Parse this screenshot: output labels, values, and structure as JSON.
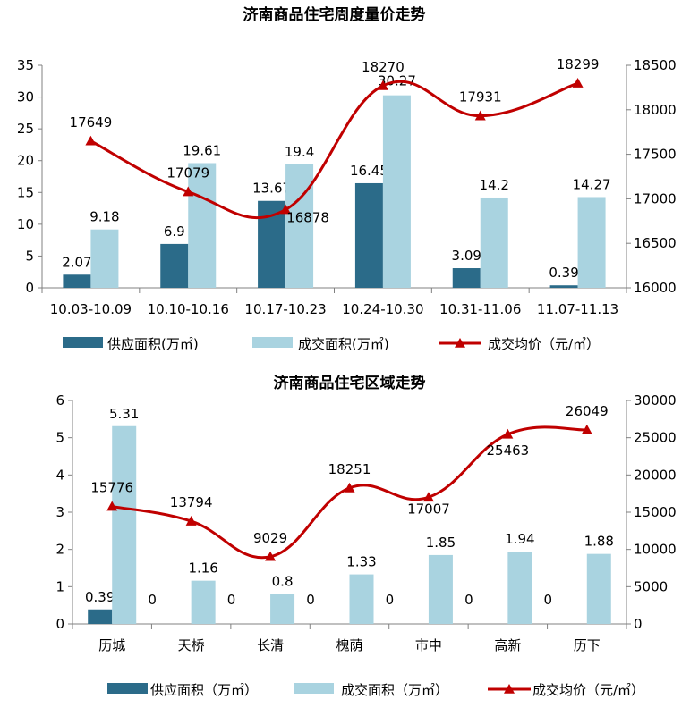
{
  "chart_data": [
    {
      "type": "bar",
      "title": "济南商品住宅周度量价走势",
      "categories": [
        "10.03-10.09",
        "10.10-10.16",
        "10.17-10.23",
        "10.24-10.30",
        "10.31-11.06",
        "11.07-11.13"
      ],
      "series": [
        {
          "name": "供应面积(万㎡)",
          "type": "bar",
          "axis": "left",
          "color": "#2b6b89",
          "values": [
            2.07,
            6.9,
            13.67,
            16.45,
            3.09,
            0.39
          ],
          "labels": [
            "2.07",
            "6.9",
            "13.67",
            "16.45",
            "3.09",
            "0.39"
          ]
        },
        {
          "name": "成交面积(万㎡)",
          "type": "bar",
          "axis": "left",
          "color": "#a9d3e0",
          "values": [
            9.18,
            19.61,
            19.4,
            30.27,
            14.2,
            14.27
          ],
          "labels": [
            "9.18",
            "19.61",
            "19.4",
            "30.27",
            "14.2",
            "14.27"
          ]
        },
        {
          "name": "成交均价（元/㎡）",
          "type": "line",
          "axis": "right",
          "color": "#c00000",
          "values": [
            17649,
            17079,
            16878,
            18270,
            17931,
            18299
          ],
          "labels": [
            "17649",
            "17079",
            "16878",
            "18270",
            "17931",
            "18299"
          ]
        }
      ],
      "ylim_left": [
        0,
        35
      ],
      "yticks_left": [
        "0",
        "5",
        "10",
        "15",
        "20",
        "25",
        "30",
        "35"
      ],
      "ylim_right": [
        16000,
        18500
      ],
      "yticks_right": [
        "16000",
        "16500",
        "17000",
        "17500",
        "18000",
        "18500"
      ],
      "grid": false,
      "legend_position": "bottom"
    },
    {
      "type": "bar",
      "title": "济南商品住宅区域走势",
      "categories": [
        "历城",
        "天桥",
        "长清",
        "槐荫",
        "市中",
        "高新",
        "历下"
      ],
      "series": [
        {
          "name": "供应面积（万㎡）",
          "type": "bar",
          "axis": "left",
          "color": "#2b6b89",
          "values": [
            0.39,
            0,
            0,
            0,
            0,
            0,
            0
          ],
          "labels": [
            "0.39",
            "0",
            "0",
            "0",
            "0",
            "0",
            "0"
          ]
        },
        {
          "name": "成交面积（万㎡）",
          "type": "bar",
          "axis": "left",
          "color": "#a9d3e0",
          "values": [
            5.31,
            1.16,
            0.8,
            1.33,
            1.85,
            1.94,
            1.88
          ],
          "labels": [
            "5.31",
            "1.16",
            "0.8",
            "1.33",
            "1.85",
            "1.94",
            "1.88"
          ]
        },
        {
          "name": "成交均价（元/㎡）",
          "type": "line",
          "axis": "right",
          "color": "#c00000",
          "values": [
            15776,
            13794,
            9029,
            18251,
            17007,
            25463,
            26049
          ],
          "labels": [
            "15776",
            "13794",
            "9029",
            "18251",
            "17007",
            "25463",
            "26049"
          ]
        }
      ],
      "ylim_left": [
        0,
        6
      ],
      "yticks_left": [
        "0",
        "1",
        "2",
        "3",
        "4",
        "5",
        "6"
      ],
      "ylim_right": [
        0,
        30000
      ],
      "yticks_right": [
        "0",
        "5000",
        "10000",
        "15000",
        "20000",
        "25000",
        "30000"
      ],
      "grid": false,
      "legend_position": "bottom"
    }
  ]
}
